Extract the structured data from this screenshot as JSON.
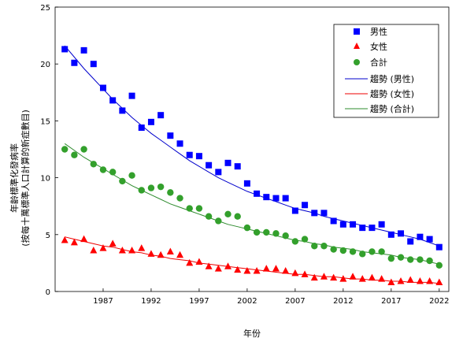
{
  "chart_data": {
    "type": "scatter",
    "xlabel": "年份",
    "ylabel_lines": [
      "年齡標準化發病率",
      "(按每十萬標準人口計算的新症數目)"
    ],
    "x_ticks": [
      1987,
      1992,
      1997,
      2002,
      2007,
      2012,
      2017,
      2022
    ],
    "y_ticks": [
      0,
      5,
      10,
      15,
      20,
      25
    ],
    "xlim": [
      1982,
      2023
    ],
    "ylim": [
      0,
      25
    ],
    "legend_position": "top-right",
    "x": [
      1983,
      1984,
      1985,
      1986,
      1987,
      1988,
      1989,
      1990,
      1991,
      1992,
      1993,
      1994,
      1995,
      1996,
      1997,
      1998,
      1999,
      2000,
      2001,
      2002,
      2003,
      2004,
      2005,
      2006,
      2007,
      2008,
      2009,
      2010,
      2011,
      2012,
      2013,
      2014,
      2015,
      2016,
      2017,
      2018,
      2019,
      2020,
      2021,
      2022
    ],
    "series": [
      {
        "name": "男性",
        "marker": "square",
        "color": "#0000ff",
        "values": [
          21.3,
          20.1,
          21.2,
          20.0,
          17.9,
          16.8,
          15.9,
          17.2,
          14.4,
          14.9,
          15.5,
          13.7,
          13.0,
          12.0,
          11.9,
          11.1,
          10.5,
          11.3,
          11.0,
          9.5,
          8.6,
          8.3,
          8.2,
          8.2,
          7.1,
          7.6,
          6.9,
          6.9,
          6.2,
          5.9,
          5.9,
          5.6,
          5.6,
          5.9,
          5.0,
          5.1,
          4.4,
          4.8,
          4.6,
          3.9
        ]
      },
      {
        "name": "女性",
        "marker": "triangle",
        "color": "#ff0000",
        "values": [
          4.5,
          4.3,
          4.6,
          3.6,
          3.8,
          4.2,
          3.6,
          3.6,
          3.8,
          3.3,
          3.2,
          3.5,
          3.2,
          2.5,
          2.6,
          2.2,
          2.0,
          2.2,
          1.9,
          1.8,
          1.8,
          2.0,
          2.0,
          1.8,
          1.6,
          1.5,
          1.2,
          1.3,
          1.2,
          1.1,
          1.3,
          1.1,
          1.2,
          1.1,
          0.8,
          0.9,
          1.0,
          0.9,
          0.9,
          0.8
        ]
      },
      {
        "name": "合計",
        "marker": "circle",
        "color": "#33a02c",
        "values": [
          12.5,
          12.0,
          12.5,
          11.2,
          10.7,
          10.5,
          9.7,
          10.2,
          8.9,
          9.1,
          9.2,
          8.7,
          8.2,
          7.3,
          7.3,
          6.6,
          6.2,
          6.8,
          6.6,
          5.6,
          5.2,
          5.2,
          5.1,
          4.9,
          4.4,
          4.6,
          4.0,
          4.0,
          3.7,
          3.6,
          3.5,
          3.3,
          3.5,
          3.5,
          2.9,
          3.0,
          2.8,
          2.8,
          2.7,
          2.3
        ]
      }
    ],
    "trends": [
      {
        "name": "趨勢 (男性)",
        "color": "#0000cc",
        "values": [
          21.6,
          20.6,
          19.6,
          18.7,
          17.8,
          16.9,
          16.1,
          15.3,
          14.6,
          13.9,
          13.3,
          12.7,
          12.1,
          11.5,
          11.0,
          10.5,
          10.0,
          9.6,
          9.2,
          8.8,
          8.5,
          8.2,
          7.9,
          7.6,
          7.3,
          7.1,
          6.9,
          6.6,
          6.4,
          6.2,
          6.0,
          5.8,
          5.6,
          5.4,
          5.2,
          5.0,
          4.8,
          4.6,
          4.3,
          4.0
        ]
      },
      {
        "name": "趨勢 (女性)",
        "color": "#ee0000",
        "values": [
          4.8,
          4.6,
          4.4,
          4.2,
          4.0,
          3.9,
          3.7,
          3.5,
          3.4,
          3.2,
          3.1,
          2.9,
          2.8,
          2.7,
          2.5,
          2.4,
          2.3,
          2.2,
          2.1,
          2.0,
          1.9,
          1.8,
          1.7,
          1.6,
          1.5,
          1.5,
          1.4,
          1.3,
          1.3,
          1.2,
          1.1,
          1.1,
          1.0,
          1.0,
          0.9,
          0.9,
          0.8,
          0.8,
          0.8,
          0.7
        ]
      },
      {
        "name": "趨勢 (合計)",
        "color": "#2e8b2e",
        "values": [
          13.0,
          12.4,
          11.8,
          11.3,
          10.8,
          10.3,
          9.8,
          9.3,
          8.9,
          8.5,
          8.1,
          7.7,
          7.4,
          7.1,
          6.8,
          6.5,
          6.2,
          5.9,
          5.7,
          5.5,
          5.3,
          5.1,
          4.9,
          4.7,
          4.5,
          4.4,
          4.2,
          4.1,
          3.9,
          3.8,
          3.7,
          3.5,
          3.4,
          3.3,
          3.2,
          3.0,
          2.9,
          2.8,
          2.6,
          2.4
        ]
      }
    ]
  }
}
